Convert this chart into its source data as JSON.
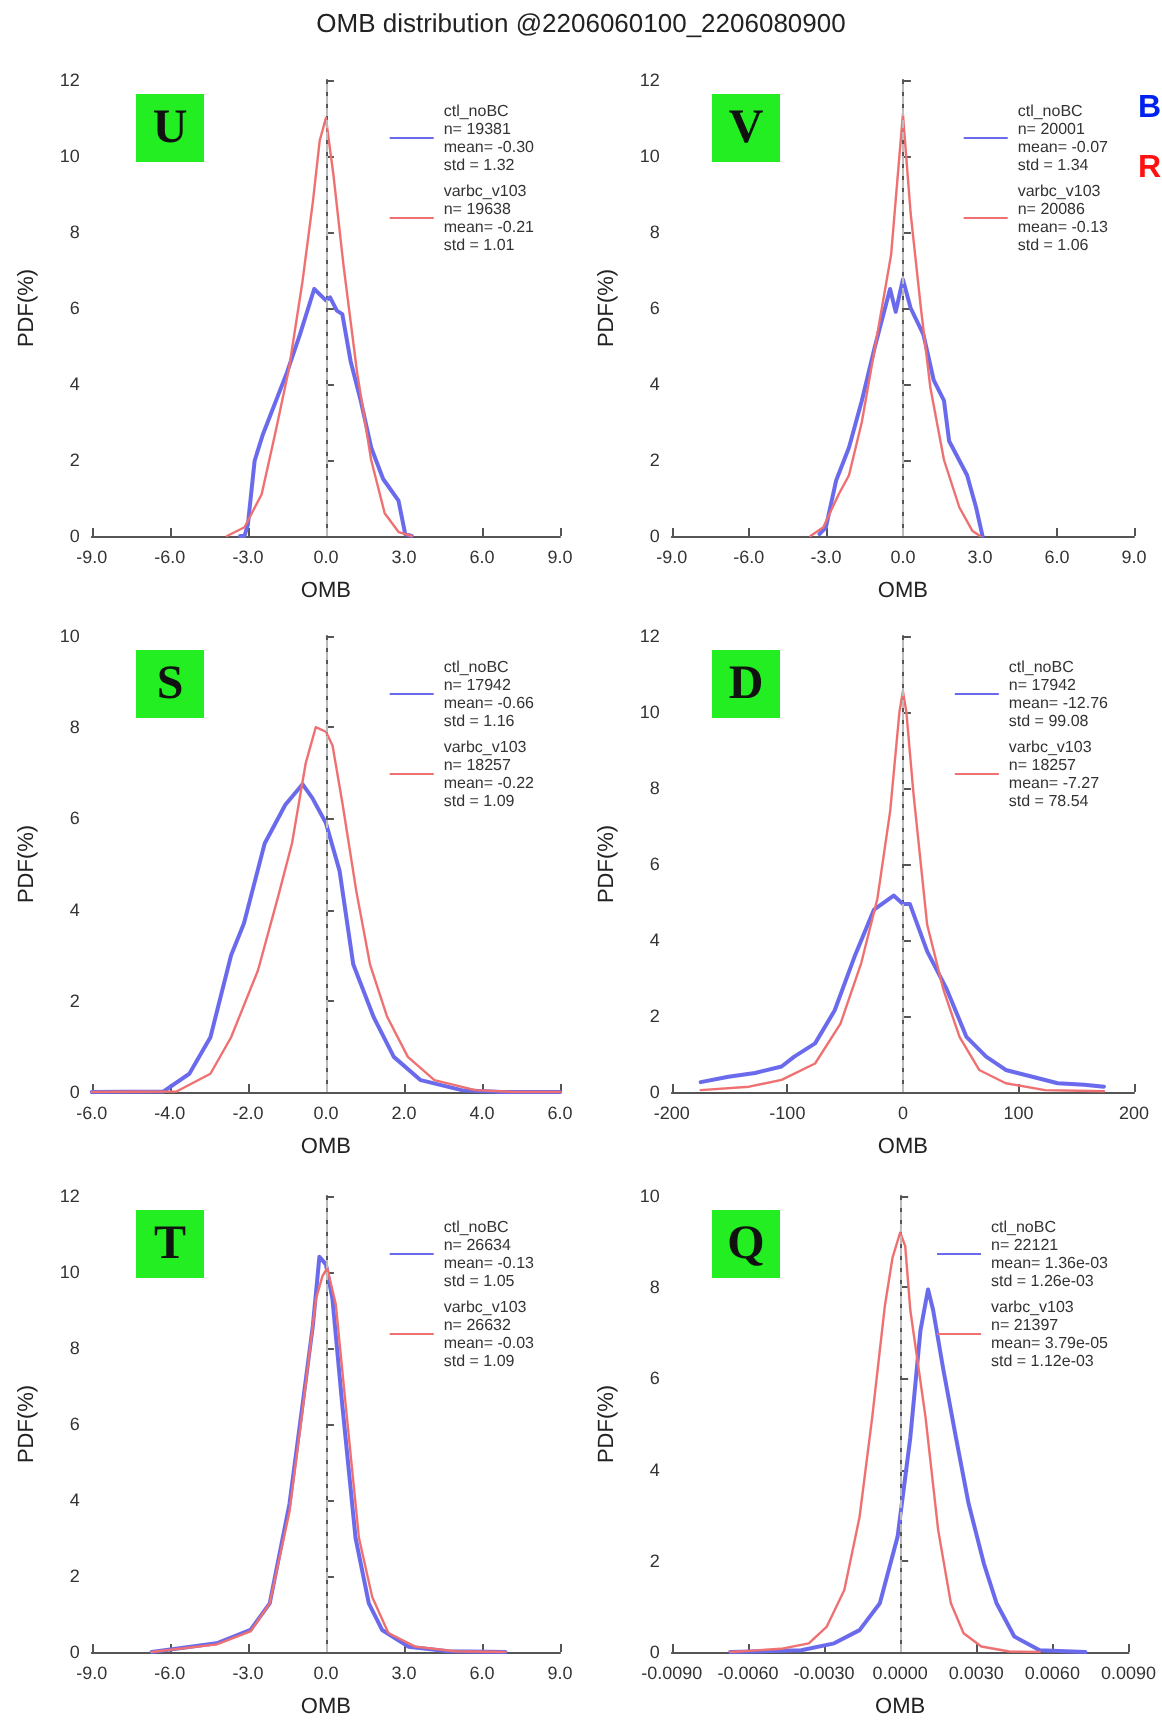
{
  "chart_data": [
    {
      "type": "line",
      "title": "OMB distribution @2206060100_2206080900",
      "xlabel": "OMB",
      "ylabel": "PDF(%)",
      "annotations": [
        "U"
      ],
      "legend": "top right",
      "grid": false,
      "marker": "none",
      "line_style": "solid",
      "xlim": [
        -9,
        9
      ],
      "xticks": [
        {
          "value": -9,
          "label": "-9.0"
        },
        {
          "value": -6,
          "label": "-6.0"
        },
        {
          "value": -3,
          "label": "-3.0"
        },
        {
          "value": 0,
          "label": "0.0"
        },
        {
          "value": 3,
          "label": "3.0"
        },
        {
          "value": 6,
          "label": "6.0"
        },
        {
          "value": 9,
          "label": "9.0"
        }
      ],
      "ylim": [
        0,
        12
      ],
      "yticks": [
        0,
        2,
        4,
        6,
        8,
        10,
        12
      ],
      "ref_lines": [
        {
          "axis": "x",
          "value": 0,
          "color": "#bbbbbb",
          "line_style": "dashed"
        }
      ],
      "series": [
        {
          "name": "ctl_noBC\nn= 19381\nmean= -0.30\nstd = 1.32",
          "color": "#6a6aec",
          "x": [
            -3.3,
            -3.13,
            -3.0,
            -2.74,
            -2.42,
            -1.5,
            -1.0,
            -0.45,
            0,
            0.16,
            0.42,
            0.63,
            0.95,
            1.34,
            1.74,
            2.2,
            2.79,
            3.05,
            3.3
          ],
          "values": [
            0,
            0,
            0.3,
            1.98,
            2.68,
            4.3,
            5.3,
            6.5,
            6.2,
            6.28,
            5.93,
            5.84,
            4.6,
            3.56,
            2.33,
            1.5,
            0.93,
            0.05,
            0
          ]
        },
        {
          "name": "varbc_v103\nn= 19638\nmean= -0.21\nstd = 1.01",
          "color": "#ef7070",
          "x": [
            -3.8,
            -3.13,
            -2.47,
            -1.95,
            -1.42,
            -0.9,
            -0.5,
            -0.24,
            0,
            0.29,
            0.68,
            1.2,
            1.74,
            2.26,
            2.8,
            3.3
          ],
          "values": [
            0,
            0.23,
            1.1,
            2.7,
            4.4,
            6.7,
            8.8,
            10.4,
            11.0,
            9.5,
            7.1,
            4.3,
            2.0,
            0.6,
            0.1,
            0
          ]
        }
      ]
    },
    {
      "type": "line",
      "xlabel": "OMB",
      "ylabel": "PDF(%)",
      "annotations": [
        "V",
        "B",
        "R"
      ],
      "legend": "top right",
      "grid": false,
      "marker": "none",
      "line_style": "solid",
      "xlim": [
        -9,
        9
      ],
      "xticks": [
        {
          "value": -9,
          "label": "-9.0"
        },
        {
          "value": -6,
          "label": "-6.0"
        },
        {
          "value": -3,
          "label": "-3.0"
        },
        {
          "value": 0,
          "label": "0.0"
        },
        {
          "value": 3,
          "label": "3.0"
        },
        {
          "value": 6,
          "label": "6.0"
        },
        {
          "value": 9,
          "label": "9.0"
        }
      ],
      "ylim": [
        0,
        12
      ],
      "yticks": [
        0,
        2,
        4,
        6,
        8,
        10,
        12
      ],
      "ref_lines": [
        {
          "axis": "x",
          "value": 0,
          "color": "#bbbbbb",
          "line_style": "dashed"
        }
      ],
      "series": [
        {
          "name": "ctl_noBC\nn= 20001\nmean= -0.07\nstd = 1.34",
          "color": "#6a6aec",
          "x": [
            -3.25,
            -3.0,
            -2.6,
            -2.1,
            -1.6,
            -1.1,
            -0.5,
            -0.28,
            0,
            0.3,
            0.8,
            1.2,
            1.6,
            1.8,
            2.5,
            2.85,
            3.1
          ],
          "values": [
            0.05,
            0.23,
            1.46,
            2.33,
            3.56,
            4.96,
            6.5,
            5.9,
            6.75,
            6.0,
            5.3,
            4.1,
            3.56,
            2.5,
            1.6,
            0.75,
            0
          ]
        },
        {
          "name": "varbc_v103\nn= 20086\nmean= -0.13\nstd = 1.06",
          "color": "#ef7070",
          "x": [
            -3.6,
            -3.1,
            -2.5,
            -2.1,
            -1.6,
            -1.0,
            -0.46,
            0,
            0.3,
            0.7,
            1.07,
            1.6,
            2.2,
            2.7,
            3.0
          ],
          "values": [
            0,
            0.23,
            1.1,
            1.6,
            3.0,
            5.3,
            7.4,
            11.1,
            8.5,
            6.0,
            3.9,
            2.0,
            0.75,
            0.14,
            0
          ]
        }
      ]
    },
    {
      "type": "line",
      "xlabel": "OMB",
      "ylabel": "PDF(%)",
      "annotations": [
        "S"
      ],
      "legend": "top right",
      "grid": false,
      "marker": "none",
      "line_style": "solid",
      "xlim": [
        -6,
        6
      ],
      "xticks": [
        {
          "value": -6,
          "label": "-6.0"
        },
        {
          "value": -4,
          "label": "-4.0"
        },
        {
          "value": -2,
          "label": "-2.0"
        },
        {
          "value": 0,
          "label": "0.0"
        },
        {
          "value": 2,
          "label": "2.0"
        },
        {
          "value": 4,
          "label": "4.0"
        },
        {
          "value": 6,
          "label": "6.0"
        }
      ],
      "ylim": [
        0,
        10
      ],
      "yticks": [
        0,
        2,
        4,
        6,
        8,
        10
      ],
      "ref_lines": [
        {
          "axis": "x",
          "value": 0,
          "color": "#bbbbbb",
          "line_style": "dashed"
        }
      ],
      "series": [
        {
          "name": "ctl_noBC\nn= 17942\nmean= -0.66\nstd = 1.16",
          "color": "#6a6aec",
          "x": [
            -6,
            -4.17,
            -3.5,
            -2.96,
            -2.43,
            -2.1,
            -1.57,
            -1.04,
            -0.6,
            -0.35,
            0,
            0.35,
            0.7,
            1.22,
            1.74,
            2.43,
            3.48,
            4.5,
            6
          ],
          "values": [
            0,
            0.01,
            0.4,
            1.2,
            3.0,
            3.7,
            5.45,
            6.3,
            6.75,
            6.45,
            5.9,
            4.85,
            2.8,
            1.65,
            0.77,
            0.26,
            0.04,
            0,
            0
          ]
        },
        {
          "name": "varbc_v103\nn= 18257\nmean= -0.22\nstd = 1.09",
          "color": "#ef7070",
          "x": [
            -6,
            -3.83,
            -2.96,
            -2.43,
            -1.74,
            -1.22,
            -0.87,
            -0.52,
            -0.26,
            0,
            0.17,
            0.43,
            0.78,
            1.13,
            1.57,
            2.1,
            2.78,
            3.83,
            4.87,
            6
          ],
          "values": [
            0,
            0.01,
            0.4,
            1.2,
            2.67,
            4.3,
            5.45,
            7.2,
            8.0,
            7.9,
            7.6,
            6.3,
            4.4,
            2.8,
            1.65,
            0.77,
            0.26,
            0.04,
            0,
            0
          ]
        }
      ]
    },
    {
      "type": "line",
      "xlabel": "OMB",
      "ylabel": "PDF(%)",
      "annotations": [
        "D"
      ],
      "legend": "top right",
      "grid": false,
      "marker": "none",
      "line_style": "solid",
      "xlim": [
        -200,
        200
      ],
      "xticks": [
        -200,
        -100,
        0,
        100,
        200
      ],
      "ylim": [
        0,
        12
      ],
      "yticks": [
        0,
        2,
        4,
        6,
        8,
        10,
        12
      ],
      "ref_lines": [
        {
          "axis": "x",
          "value": 0,
          "color": "#bbbbbb",
          "line_style": "dashed"
        }
      ],
      "series": [
        {
          "name": "ctl_noBC\nn= 17942\nmean= -12.76\nstd = 99.08",
          "color": "#6a6aec",
          "x": [
            -175,
            -151,
            -128,
            -105,
            -94,
            -76,
            -59,
            -42,
            -25,
            -8,
            0,
            6,
            21,
            38,
            55,
            72,
            89,
            112,
            134,
            157,
            174
          ],
          "values": [
            0.26,
            0.4,
            0.5,
            0.67,
            0.93,
            1.28,
            2.15,
            3.55,
            4.8,
            5.17,
            4.95,
            4.95,
            3.7,
            2.7,
            1.45,
            0.93,
            0.58,
            0.4,
            0.23,
            0.19,
            0.14
          ]
        },
        {
          "name": "varbc_v103\nn= 18257\nmean= -7.27\nstd = 78.54",
          "color": "#ef7070",
          "x": [
            -175,
            -133,
            -105,
            -76,
            -54,
            -36,
            -22,
            -11,
            -3,
            0,
            3,
            9,
            21,
            35,
            49,
            66,
            89,
            123,
            174
          ],
          "values": [
            0.05,
            0.14,
            0.32,
            0.75,
            1.8,
            3.4,
            5.1,
            7.4,
            10.0,
            10.55,
            10.0,
            7.9,
            4.4,
            2.7,
            1.45,
            0.58,
            0.23,
            0.05,
            0.02
          ]
        }
      ]
    },
    {
      "type": "line",
      "xlabel": "OMB",
      "ylabel": "PDF(%)",
      "annotations": [
        "T"
      ],
      "legend": "top right",
      "grid": false,
      "marker": "none",
      "line_style": "solid",
      "xlim": [
        -9,
        9
      ],
      "xticks": [
        {
          "value": -9,
          "label": "-9.0"
        },
        {
          "value": -6,
          "label": "-6.0"
        },
        {
          "value": -3,
          "label": "-3.0"
        },
        {
          "value": 0,
          "label": "0.0"
        },
        {
          "value": 3,
          "label": "3.0"
        },
        {
          "value": 6,
          "label": "6.0"
        },
        {
          "value": 9,
          "label": "9.0"
        }
      ],
      "ylim": [
        0,
        12
      ],
      "yticks": [
        0,
        2,
        4,
        6,
        8,
        10,
        12
      ],
      "ref_lines": [
        {
          "axis": "x",
          "value": 0,
          "color": "#bbbbbb",
          "line_style": "dashed"
        }
      ],
      "series": [
        {
          "name": "ctl_noBC\nn= 26634\nmean= -0.13\nstd = 1.05",
          "color": "#6a6aec",
          "x": [
            -6.7,
            -4.2,
            -2.9,
            -2.16,
            -1.4,
            -0.9,
            -0.5,
            -0.25,
            0,
            0.25,
            0.63,
            1.14,
            1.65,
            2.16,
            3.17,
            4.7,
            6.9
          ],
          "values": [
            0,
            0.23,
            0.58,
            1.28,
            3.9,
            6.5,
            8.6,
            10.4,
            10.2,
            9.3,
            6.5,
            3.0,
            1.28,
            0.58,
            0.14,
            0.02,
            0
          ]
        },
        {
          "name": "varbc_v103\nn= 26632\nmean= -0.03\nstd = 1.09",
          "color": "#ef7070",
          "x": [
            -6.7,
            -4.2,
            -2.9,
            -2.16,
            -1.4,
            -0.9,
            -0.38,
            -0.13,
            0.05,
            0.38,
            0.76,
            1.27,
            1.78,
            2.4,
            3.43,
            4.95,
            6.9
          ],
          "values": [
            0,
            0.2,
            0.54,
            1.28,
            3.7,
            6.35,
            9.3,
            9.9,
            10.1,
            9.15,
            6.5,
            3.0,
            1.45,
            0.5,
            0.14,
            0.02,
            0
          ]
        }
      ]
    },
    {
      "type": "line",
      "xlabel": "OMB",
      "ylabel": "PDF(%)",
      "annotations": [
        "Q"
      ],
      "legend": "top right",
      "grid": false,
      "marker": "none",
      "line_style": "solid",
      "xlim": [
        -0.009,
        0.009
      ],
      "xticks": [
        {
          "value": -0.009,
          "label": "-0.0090"
        },
        {
          "value": -0.006,
          "label": "-0.0060"
        },
        {
          "value": -0.003,
          "label": "-0.0030"
        },
        {
          "value": 0,
          "label": "0.0000"
        },
        {
          "value": 0.003,
          "label": "0.0030"
        },
        {
          "value": 0.006,
          "label": "0.0060"
        },
        {
          "value": 0.009,
          "label": "0.0090"
        }
      ],
      "ylim": [
        0,
        10
      ],
      "yticks": [
        0,
        2,
        4,
        6,
        8,
        10
      ],
      "ref_lines": [
        {
          "axis": "x",
          "value": 0,
          "color": "#bbbbbb",
          "line_style": "dashed"
        }
      ],
      "series": [
        {
          "name": "ctl_noBC\nn= 22121\nmean= 1.36e-03\nstd = 1.26e-03",
          "color": "#6a6aec",
          "x": [
            -0.0067,
            -0.0039,
            -0.0026,
            -0.0016,
            -0.0008,
            -0.0001,
            0.0004,
            0.0008,
            0.0011,
            0.0013,
            0.0017,
            0.0022,
            0.0027,
            0.0033,
            0.0038,
            0.0045,
            0.0055,
            0.0073
          ],
          "values": [
            0,
            0.04,
            0.19,
            0.48,
            1.07,
            2.53,
            4.7,
            7.05,
            7.95,
            7.5,
            6.2,
            4.7,
            3.25,
            1.94,
            1.07,
            0.34,
            0.04,
            0
          ]
        },
        {
          "name": "varbc_v103\nn= 21397\nmean= 3.79e-05\nstd = 1.12e-03",
          "color": "#ef7070",
          "x": [
            -0.0067,
            -0.0047,
            -0.0036,
            -0.0029,
            -0.0022,
            -0.0016,
            -0.0011,
            -0.0006,
            -0.0003,
            0,
            0.0002,
            0.0004,
            0.001,
            0.0015,
            0.002,
            0.0025,
            0.0032,
            0.0043,
            0.0055
          ],
          "values": [
            0,
            0.07,
            0.19,
            0.55,
            1.36,
            2.96,
            5.15,
            7.6,
            8.65,
            9.2,
            8.9,
            7.5,
            5.15,
            2.67,
            1.07,
            0.41,
            0.12,
            0.01,
            0
          ]
        }
      ]
    }
  ]
}
